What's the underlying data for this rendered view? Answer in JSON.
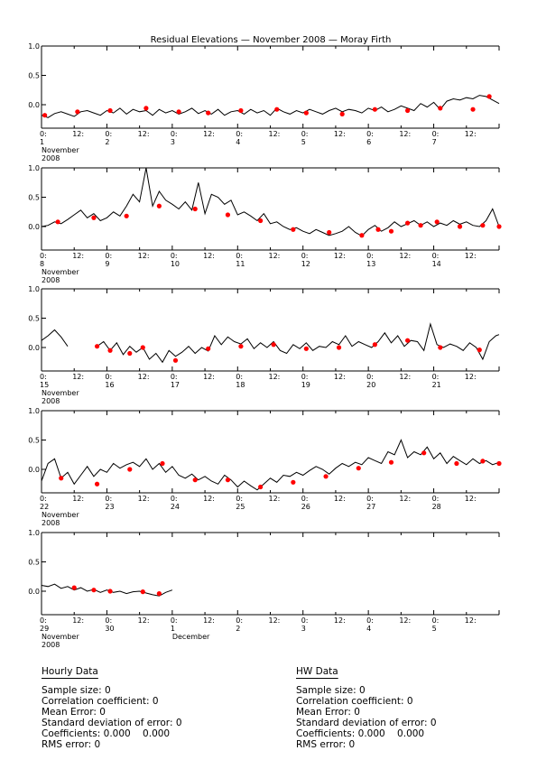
{
  "chart_data": {
    "type": "line",
    "title": "Residual Elevations — November 2008 — Moray Firth",
    "xlabel": "",
    "ylabel": "",
    "ylim": [
      -0.4,
      1.0
    ],
    "y_ticks": [
      "1.0",
      "0.5",
      "0.0"
    ],
    "grid": false,
    "legend": "none",
    "line_color": "#000000",
    "marker_color": "#ff0000",
    "panels": [
      {
        "x_ticks": [
          "0:",
          "12:",
          "0:",
          "12:",
          "0:",
          "12:",
          "0:",
          "12:",
          "0:",
          "12:",
          "0:",
          "12:",
          "0:",
          "12:"
        ],
        "day_labels": [
          "1",
          "2",
          "3",
          "4",
          "5",
          "6",
          "7"
        ],
        "month_label": "November",
        "year_label": "2008",
        "end_month_label": "",
        "series": {
          "t": [
            0,
            0.1,
            0.2,
            0.3,
            0.4,
            0.5,
            0.6,
            0.7,
            0.8,
            0.9,
            1.0,
            1.1,
            1.2,
            1.3,
            1.4,
            1.5,
            1.6,
            1.7,
            1.8,
            1.9,
            2.0,
            2.1,
            2.2,
            2.3,
            2.4,
            2.5,
            2.6,
            2.7,
            2.8,
            2.9,
            3.0,
            3.1,
            3.2,
            3.3,
            3.4,
            3.5,
            3.6,
            3.7,
            3.8,
            3.9,
            4.0,
            4.1,
            4.2,
            4.3,
            4.4,
            4.5,
            4.6,
            4.7,
            4.8,
            4.9,
            5.0,
            5.1,
            5.2,
            5.3,
            5.4,
            5.5,
            5.6,
            5.7,
            5.8,
            5.9,
            6.0,
            6.1,
            6.2,
            6.3,
            6.4,
            6.5,
            6.6,
            6.7,
            6.8,
            6.9,
            7.0
          ],
          "y": [
            -0.18,
            -0.22,
            -0.15,
            -0.12,
            -0.16,
            -0.2,
            -0.12,
            -0.1,
            -0.14,
            -0.18,
            -0.1,
            -0.14,
            -0.06,
            -0.16,
            -0.08,
            -0.12,
            -0.1,
            -0.18,
            -0.08,
            -0.14,
            -0.1,
            -0.16,
            -0.12,
            -0.06,
            -0.15,
            -0.1,
            -0.16,
            -0.08,
            -0.18,
            -0.12,
            -0.1,
            -0.16,
            -0.08,
            -0.14,
            -0.1,
            -0.18,
            -0.06,
            -0.12,
            -0.16,
            -0.1,
            -0.14,
            -0.08,
            -0.12,
            -0.16,
            -0.1,
            -0.06,
            -0.12,
            -0.08,
            -0.1,
            -0.14,
            -0.06,
            -0.1,
            -0.04,
            -0.12,
            -0.08,
            -0.02,
            -0.06,
            -0.1,
            0.02,
            -0.04,
            0.04,
            -0.08,
            0.06,
            0.1,
            0.08,
            0.12,
            0.1,
            0.16,
            0.14,
            0.08,
            0.02
          ]
        },
        "markers": {
          "t": [
            0.05,
            0.55,
            1.05,
            1.6,
            2.1,
            2.55,
            3.05,
            3.6,
            4.05,
            4.6,
            5.1,
            5.6,
            6.1,
            6.6,
            6.85
          ],
          "y": [
            -0.18,
            -0.12,
            -0.1,
            -0.06,
            -0.12,
            -0.14,
            -0.1,
            -0.08,
            -0.14,
            -0.16,
            -0.08,
            -0.1,
            -0.06,
            -0.08,
            0.14
          ]
        }
      },
      {
        "x_ticks": [
          "0:",
          "12:",
          "0:",
          "12:",
          "0:",
          "12:",
          "0:",
          "12:",
          "0:",
          "12:",
          "0:",
          "12:",
          "0:",
          "12:"
        ],
        "day_labels": [
          "8",
          "9",
          "10",
          "11",
          "12",
          "13",
          "14"
        ],
        "month_label": "November",
        "year_label": "2008",
        "end_month_label": "",
        "series": {
          "t": [
            0,
            0.1,
            0.2,
            0.3,
            0.4,
            0.5,
            0.6,
            0.7,
            0.8,
            0.9,
            1.0,
            1.1,
            1.2,
            1.3,
            1.4,
            1.5,
            1.6,
            1.7,
            1.8,
            1.9,
            2.0,
            2.1,
            2.2,
            2.3,
            2.4,
            2.5,
            2.6,
            2.7,
            2.8,
            2.9,
            3.0,
            3.1,
            3.2,
            3.3,
            3.4,
            3.5,
            3.6,
            3.7,
            3.8,
            3.9,
            4.0,
            4.1,
            4.2,
            4.3,
            4.4,
            4.5,
            4.6,
            4.7,
            4.8,
            4.9,
            5.0,
            5.1,
            5.2,
            5.3,
            5.4,
            5.5,
            5.6,
            5.7,
            5.8,
            5.9,
            6.0,
            6.1,
            6.2,
            6.3,
            6.4,
            6.5,
            6.6,
            6.7,
            6.8,
            6.9,
            7.0
          ],
          "y": [
            0.0,
            0.02,
            0.08,
            0.05,
            0.12,
            0.2,
            0.28,
            0.15,
            0.22,
            0.1,
            0.15,
            0.25,
            0.18,
            0.35,
            0.55,
            0.42,
            1.0,
            0.35,
            0.6,
            0.45,
            0.38,
            0.3,
            0.42,
            0.28,
            0.75,
            0.22,
            0.55,
            0.5,
            0.38,
            0.45,
            0.2,
            0.25,
            0.18,
            0.1,
            0.22,
            0.05,
            0.08,
            0.0,
            -0.05,
            -0.02,
            -0.08,
            -0.12,
            -0.05,
            -0.1,
            -0.15,
            -0.12,
            -0.08,
            0.0,
            -0.1,
            -0.16,
            -0.05,
            0.02,
            -0.08,
            -0.02,
            0.08,
            0.0,
            0.05,
            0.1,
            0.02,
            0.08,
            0.0,
            0.06,
            0.02,
            0.1,
            0.04,
            0.08,
            0.02,
            0.0,
            0.1,
            0.3,
            0.0
          ]
        },
        "markers": {
          "t": [
            0.25,
            0.8,
            1.3,
            1.8,
            2.35,
            2.85,
            3.35,
            3.85,
            4.4,
            4.9,
            5.15,
            5.35,
            5.6,
            5.8,
            6.05,
            6.4,
            6.75,
            7.0
          ],
          "y": [
            0.08,
            0.15,
            0.18,
            0.35,
            0.3,
            0.2,
            0.1,
            -0.05,
            -0.1,
            -0.15,
            -0.05,
            -0.08,
            0.06,
            0.02,
            0.08,
            0.0,
            0.02,
            0.0
          ]
        }
      },
      {
        "x_ticks": [
          "0:",
          "12:",
          "0:",
          "12:",
          "0:",
          "12:",
          "0:",
          "12:",
          "0:",
          "12:",
          "0:",
          "12:",
          "0:",
          "12:"
        ],
        "day_labels": [
          "15",
          "16",
          "17",
          "18",
          "19",
          "20",
          "21"
        ],
        "month_label": "November",
        "year_label": "2008",
        "end_month_label": "",
        "series_segments": [
          {
            "t": [
              0,
              0.1,
              0.2,
              0.3,
              0.4
            ],
            "y": [
              0.12,
              0.2,
              0.3,
              0.18,
              0.02
            ]
          },
          {
            "t": [
              0.85,
              0.95,
              1.05,
              1.15,
              1.25,
              1.35,
              1.45,
              1.55,
              1.65,
              1.75,
              1.85,
              1.95,
              2.05,
              2.15,
              2.25,
              2.35,
              2.45,
              2.55,
              2.65,
              2.75,
              2.85,
              2.95,
              3.05,
              3.15,
              3.25,
              3.35,
              3.45,
              3.55,
              3.65,
              3.75,
              3.85,
              3.95,
              4.05,
              4.15,
              4.25,
              4.35,
              4.45,
              4.55,
              4.65,
              4.75,
              4.85,
              4.95,
              5.05,
              5.15,
              5.25,
              5.35,
              5.45,
              5.55,
              5.65,
              5.75,
              5.85,
              5.95,
              6.05,
              6.15,
              6.25,
              6.35,
              6.45,
              6.55,
              6.65,
              6.75,
              6.85,
              6.95,
              7.0
            ],
            "y": [
              0.02,
              0.1,
              -0.05,
              0.08,
              -0.12,
              0.02,
              -0.08,
              0.0,
              -0.2,
              -0.1,
              -0.25,
              -0.05,
              -0.15,
              -0.08,
              0.02,
              -0.1,
              0.0,
              -0.06,
              0.2,
              0.05,
              0.18,
              0.1,
              0.06,
              0.15,
              -0.02,
              0.08,
              0.0,
              0.1,
              -0.05,
              -0.1,
              0.05,
              -0.02,
              0.08,
              -0.05,
              0.02,
              0.0,
              0.1,
              0.05,
              0.2,
              0.02,
              0.1,
              0.05,
              0.0,
              0.1,
              0.25,
              0.08,
              0.2,
              0.02,
              0.12,
              0.1,
              -0.05,
              0.4,
              0.05,
              0.0,
              0.06,
              0.02,
              -0.05,
              0.08,
              0.0,
              -0.2,
              0.1,
              0.2,
              0.22
            ]
          }
        ],
        "markers": {
          "t": [
            0.85,
            1.05,
            1.35,
            1.55,
            2.05,
            2.55,
            3.05,
            3.55,
            4.05,
            4.55,
            5.1,
            5.6,
            6.1,
            6.7
          ],
          "y": [
            0.02,
            -0.05,
            -0.1,
            0.0,
            -0.22,
            -0.02,
            0.02,
            0.05,
            -0.02,
            0.0,
            0.05,
            0.12,
            0.0,
            -0.04
          ]
        }
      },
      {
        "x_ticks": [
          "0:",
          "12:",
          "0:",
          "12:",
          "0:",
          "12:",
          "0:",
          "12:",
          "0:",
          "12:",
          "0:",
          "12:",
          "0:",
          "12:"
        ],
        "day_labels": [
          "22",
          "23",
          "24",
          "25",
          "26",
          "27",
          "28"
        ],
        "month_label": "November",
        "year_label": "2008",
        "end_month_label": "",
        "series": {
          "t": [
            0,
            0.1,
            0.2,
            0.3,
            0.4,
            0.5,
            0.6,
            0.7,
            0.8,
            0.9,
            1.0,
            1.1,
            1.2,
            1.3,
            1.4,
            1.5,
            1.6,
            1.7,
            1.8,
            1.9,
            2.0,
            2.1,
            2.2,
            2.3,
            2.4,
            2.5,
            2.6,
            2.7,
            2.8,
            2.9,
            3.0,
            3.1,
            3.2,
            3.3,
            3.4,
            3.5,
            3.6,
            3.7,
            3.8,
            3.9,
            4.0,
            4.1,
            4.2,
            4.3,
            4.4,
            4.5,
            4.6,
            4.7,
            4.8,
            4.9,
            5.0,
            5.1,
            5.2,
            5.3,
            5.4,
            5.5,
            5.6,
            5.7,
            5.8,
            5.9,
            6.0,
            6.1,
            6.2,
            6.3,
            6.4,
            6.5,
            6.6,
            6.7,
            6.8,
            6.9,
            7.0
          ],
          "y": [
            -0.2,
            0.1,
            0.18,
            -0.15,
            -0.05,
            -0.25,
            -0.1,
            0.05,
            -0.12,
            0.0,
            -0.05,
            0.1,
            0.02,
            0.08,
            0.12,
            0.05,
            0.18,
            0.0,
            0.1,
            -0.05,
            0.05,
            -0.1,
            -0.15,
            -0.08,
            -0.18,
            -0.12,
            -0.2,
            -0.25,
            -0.1,
            -0.18,
            -0.3,
            -0.2,
            -0.28,
            -0.35,
            -0.25,
            -0.15,
            -0.22,
            -0.1,
            -0.12,
            -0.05,
            -0.1,
            -0.02,
            0.05,
            0.0,
            -0.08,
            0.02,
            0.1,
            0.05,
            0.12,
            0.08,
            0.2,
            0.15,
            0.1,
            0.3,
            0.25,
            0.5,
            0.2,
            0.3,
            0.25,
            0.38,
            0.18,
            0.28,
            0.1,
            0.22,
            0.15,
            0.08,
            0.18,
            0.1,
            0.15,
            0.08,
            0.12
          ]
        },
        "markers": {
          "t": [
            0.3,
            0.85,
            1.35,
            1.85,
            2.35,
            2.85,
            3.35,
            3.85,
            4.35,
            4.85,
            5.35,
            5.85,
            6.35,
            6.75,
            7.0
          ],
          "y": [
            -0.15,
            -0.25,
            0.0,
            0.1,
            -0.18,
            -0.18,
            -0.3,
            -0.22,
            -0.12,
            0.02,
            0.12,
            0.28,
            0.1,
            0.14,
            0.1
          ]
        }
      },
      {
        "x_ticks": [
          "0:",
          "12:",
          "0:",
          "12:",
          "0:",
          "12:",
          "0:",
          "12:",
          "0:",
          "12:",
          "0:",
          "12:",
          "0:",
          "12:"
        ],
        "day_labels": [
          "29",
          "30",
          "1",
          "2",
          "3",
          "4",
          "5"
        ],
        "month_label": "November",
        "year_label": "2008",
        "end_month_label": "December",
        "series": {
          "t": [
            0,
            0.1,
            0.2,
            0.3,
            0.4,
            0.5,
            0.6,
            0.7,
            0.8,
            0.9,
            1.0,
            1.1,
            1.2,
            1.3,
            1.4,
            1.5,
            1.6,
            1.7,
            1.8,
            1.9,
            2.0
          ],
          "y": [
            0.1,
            0.08,
            0.12,
            0.05,
            0.08,
            0.02,
            0.06,
            0.0,
            0.03,
            -0.02,
            0.02,
            -0.02,
            0.0,
            -0.04,
            -0.01,
            0.0,
            -0.03,
            -0.06,
            -0.08,
            -0.02,
            0.02
          ]
        },
        "markers": {
          "t": [
            0.5,
            0.8,
            1.05,
            1.55,
            1.8
          ],
          "y": [
            0.06,
            0.02,
            0.0,
            -0.01,
            -0.04
          ]
        }
      }
    ]
  },
  "stats": {
    "hourly": {
      "heading": "Hourly Data",
      "lines": [
        "Sample size: 0",
        "Correlation coefficient: 0",
        "Mean Error: 0",
        "Standard deviation of error: 0",
        "Coefficients: 0.000    0.000",
        "RMS error: 0"
      ]
    },
    "hw": {
      "heading": "HW Data",
      "lines": [
        "Sample size: 0",
        "Correlation coefficient: 0",
        "Mean Error: 0",
        "Standard deviation of error: 0",
        "Coefficients: 0.000    0.000",
        "RMS error: 0"
      ]
    }
  }
}
